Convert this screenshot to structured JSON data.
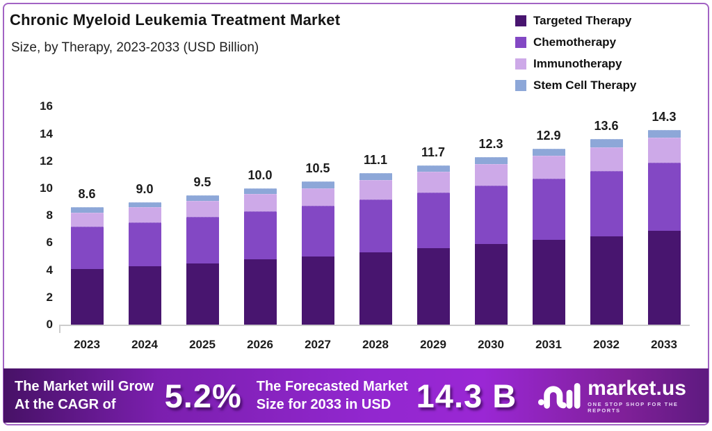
{
  "header": {
    "title": "Chronic Myeloid Leukemia Treatment Market",
    "subtitle": "Size, by Therapy, 2023-2033 (USD Billion)"
  },
  "chart_data": {
    "type": "bar",
    "stacked": true,
    "title": "Chronic Myeloid Leukemia Treatment Market Size, by Therapy, 2023-2033 (USD Billion)",
    "categories": [
      "2023",
      "2024",
      "2025",
      "2026",
      "2027",
      "2028",
      "2029",
      "2030",
      "2031",
      "2032",
      "2033"
    ],
    "series": [
      {
        "name": "Targeted Therapy",
        "color": "#48156f",
        "values": [
          4.1,
          4.3,
          4.5,
          4.8,
          5.0,
          5.3,
          5.6,
          5.9,
          6.2,
          6.5,
          6.9
        ]
      },
      {
        "name": "Chemotherapy",
        "color": "#8348c4",
        "values": [
          3.1,
          3.2,
          3.4,
          3.5,
          3.7,
          3.9,
          4.1,
          4.3,
          4.5,
          4.8,
          5.0
        ]
      },
      {
        "name": "Immunotherapy",
        "color": "#cda9e8",
        "values": [
          1.0,
          1.1,
          1.2,
          1.3,
          1.3,
          1.4,
          1.5,
          1.6,
          1.7,
          1.7,
          1.8
        ]
      },
      {
        "name": "Stem Cell Therapy",
        "color": "#8da7d8",
        "values": [
          0.4,
          0.4,
          0.4,
          0.4,
          0.5,
          0.5,
          0.5,
          0.5,
          0.5,
          0.6,
          0.6
        ]
      }
    ],
    "totals": [
      "8.6",
      "9.0",
      "9.5",
      "10.0",
      "10.5",
      "11.1",
      "11.7",
      "12.3",
      "12.9",
      "13.6",
      "14.3"
    ],
    "y_ticks": [
      0,
      2,
      4,
      6,
      8,
      10,
      12,
      14,
      16
    ],
    "ylim": [
      0,
      16
    ],
    "xlabel": "",
    "ylabel": "",
    "grid": false,
    "legend_position": "top-right"
  },
  "banner": {
    "cagr_label_line1": "The Market will Grow",
    "cagr_label_line2": "At the CAGR of",
    "cagr_value": "5.2%",
    "forecast_label_line1": "The Forecasted Market",
    "forecast_label_line2": "Size for 2033 in USD",
    "forecast_value": "14.3 B",
    "logo_name": "market.us",
    "logo_tagline": "ONE STOP SHOP FOR THE REPORTS"
  },
  "colors": {
    "frame_border": "#a263c4",
    "banner_gradient_start": "#471166",
    "banner_gradient_mid": "#9a27d4",
    "banner_gradient_end": "#5e1a80",
    "axis_line": "#cccccc",
    "text_dark": "#1b1b1b"
  }
}
